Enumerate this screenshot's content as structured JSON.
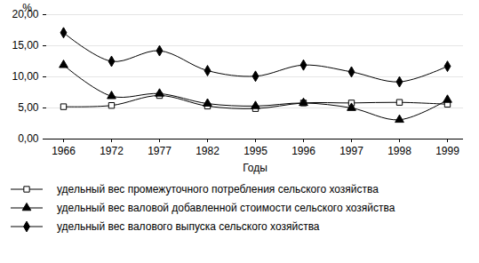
{
  "chart_data": {
    "type": "line",
    "x_label": "Годы",
    "y_label": "%",
    "categories": [
      "1966",
      "1972",
      "1977",
      "1982",
      "1995",
      "1996",
      "1997",
      "1998",
      "1999"
    ],
    "series": [
      {
        "name": "удельный вес промежуточного потребления сельского хозяйства",
        "color": "#000000",
        "marker": "square_open",
        "values": [
          5.2,
          5.4,
          7.0,
          5.3,
          4.9,
          5.8,
          5.8,
          5.9,
          5.6
        ]
      },
      {
        "name": "удельный вес валовой добавленной стоимости сельского хозяйства",
        "color": "#000000",
        "marker": "triangle",
        "values": [
          11.9,
          6.9,
          7.3,
          5.7,
          5.3,
          5.8,
          5.0,
          3.1,
          6.3
        ]
      },
      {
        "name": "удельный вес валового выпуска сельского хозяйства",
        "color": "#000000",
        "marker": "diamond",
        "values": [
          17.1,
          12.5,
          14.2,
          11.0,
          10.1,
          11.9,
          10.8,
          9.2,
          11.7
        ]
      }
    ],
    "ylim": [
      0,
      20
    ],
    "yticks": [
      {
        "value": 0,
        "label": "0,00"
      },
      {
        "value": 5,
        "label": "5,00"
      },
      {
        "value": 10,
        "label": "10,00"
      },
      {
        "value": 15,
        "label": "15,00"
      },
      {
        "value": 20,
        "label": "20,00"
      }
    ],
    "grid": true,
    "legend": "bottom"
  }
}
